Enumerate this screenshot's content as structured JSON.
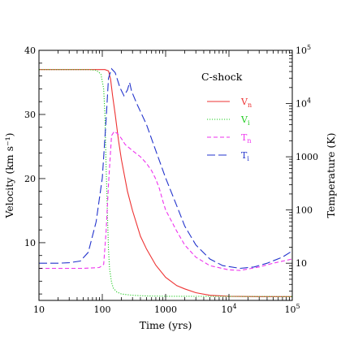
{
  "chart_data": {
    "type": "line",
    "title": "",
    "xlabel": "Time (yrs)",
    "ylabel_left": "Velocity (km s⁻¹)",
    "ylabel_right": "Temperature (K)",
    "x_scale": "log",
    "y_right_scale": "log",
    "xlim": [
      10,
      100000
    ],
    "ylim_left": [
      1,
      40
    ],
    "ylim_right": [
      2,
      100000
    ],
    "grid": false,
    "legend": {
      "title": "C-shock",
      "placement": "top-right"
    },
    "x_tick_labels": [
      {
        "value": 10,
        "base": "10",
        "exp": ""
      },
      {
        "value": 100,
        "base": "100",
        "exp": ""
      },
      {
        "value": 1000,
        "base": "1000",
        "exp": ""
      },
      {
        "value": 10000,
        "base": "10",
        "exp": "4"
      },
      {
        "value": 100000,
        "base": "10",
        "exp": "5"
      }
    ],
    "y_left_tick_labels": [
      10,
      20,
      30,
      40
    ],
    "y_right_tick_labels": [
      {
        "value": 10,
        "base": "10",
        "exp": ""
      },
      {
        "value": 100,
        "base": "100",
        "exp": ""
      },
      {
        "value": 1000,
        "base": "1000",
        "exp": ""
      },
      {
        "value": 10000,
        "base": "10",
        "exp": "4"
      },
      {
        "value": 100000,
        "base": "10",
        "exp": "5"
      }
    ],
    "series": [
      {
        "name": "V",
        "subscript": "n",
        "axis": "left",
        "color": "#ee3333",
        "dash": "solid",
        "points": [
          [
            10,
            37
          ],
          [
            80,
            37
          ],
          [
            110,
            37
          ],
          [
            125,
            36.8
          ],
          [
            135,
            35.5
          ],
          [
            145,
            33
          ],
          [
            160,
            30
          ],
          [
            180,
            26
          ],
          [
            200,
            23
          ],
          [
            250,
            18
          ],
          [
            300,
            15
          ],
          [
            400,
            11
          ],
          [
            500,
            9
          ],
          [
            700,
            6.5
          ],
          [
            1000,
            4.6
          ],
          [
            1500,
            3.3
          ],
          [
            2000,
            2.8
          ],
          [
            3000,
            2.2
          ],
          [
            5000,
            1.8
          ],
          [
            10000,
            1.65
          ],
          [
            30000,
            1.6
          ],
          [
            100000,
            1.6
          ]
        ]
      },
      {
        "name": "V",
        "subscript": "i",
        "axis": "left",
        "color": "#22cc22",
        "dash": "dotted",
        "points": [
          [
            10,
            37
          ],
          [
            60,
            37
          ],
          [
            80,
            36.9
          ],
          [
            95,
            36.3
          ],
          [
            105,
            34
          ],
          [
            110,
            30
          ],
          [
            115,
            22
          ],
          [
            120,
            15
          ],
          [
            125,
            9
          ],
          [
            130,
            6
          ],
          [
            140,
            3.8
          ],
          [
            150,
            2.9
          ],
          [
            170,
            2.3
          ],
          [
            200,
            2
          ],
          [
            300,
            1.8
          ],
          [
            500,
            1.7
          ],
          [
            1000,
            1.65
          ],
          [
            10000,
            1.62
          ],
          [
            100000,
            1.6
          ]
        ]
      },
      {
        "name": "T",
        "subscript": "n",
        "axis": "right",
        "color": "#ee33ee",
        "dash": "dashed",
        "points": [
          [
            10,
            8
          ],
          [
            20,
            8
          ],
          [
            50,
            8
          ],
          [
            90,
            8.3
          ],
          [
            105,
            9.5
          ],
          [
            115,
            40
          ],
          [
            125,
            300
          ],
          [
            140,
            2500
          ],
          [
            155,
            3000
          ],
          [
            175,
            2700
          ],
          [
            200,
            2200
          ],
          [
            230,
            1700
          ],
          [
            300,
            1300
          ],
          [
            400,
            1000
          ],
          [
            500,
            750
          ],
          [
            600,
            550
          ],
          [
            700,
            380
          ],
          [
            800,
            250
          ],
          [
            900,
            150
          ],
          [
            1000,
            100
          ],
          [
            1500,
            40
          ],
          [
            2000,
            22
          ],
          [
            3000,
            13
          ],
          [
            5000,
            9
          ],
          [
            10000,
            7.5
          ],
          [
            15000,
            7.3
          ],
          [
            30000,
            8.5
          ],
          [
            50000,
            10
          ],
          [
            100000,
            12
          ]
        ]
      },
      {
        "name": "T",
        "subscript": "i",
        "axis": "right",
        "color": "#2233cc",
        "dash": "longdash",
        "points": [
          [
            10,
            10
          ],
          [
            20,
            10
          ],
          [
            30,
            10.2
          ],
          [
            45,
            11
          ],
          [
            60,
            16
          ],
          [
            80,
            60
          ],
          [
            100,
            400
          ],
          [
            115,
            5000
          ],
          [
            125,
            30000
          ],
          [
            140,
            45000
          ],
          [
            160,
            38000
          ],
          [
            190,
            20000
          ],
          [
            220,
            14000
          ],
          [
            250,
            18000
          ],
          [
            270,
            25000
          ],
          [
            290,
            17000
          ],
          [
            350,
            10000
          ],
          [
            500,
            4000
          ],
          [
            700,
            1300
          ],
          [
            1000,
            400
          ],
          [
            1500,
            120
          ],
          [
            2000,
            50
          ],
          [
            3000,
            22
          ],
          [
            5000,
            12
          ],
          [
            8000,
            9
          ],
          [
            15000,
            8
          ],
          [
            25000,
            8.5
          ],
          [
            40000,
            10
          ],
          [
            70000,
            13
          ],
          [
            100000,
            17
          ]
        ]
      }
    ]
  }
}
